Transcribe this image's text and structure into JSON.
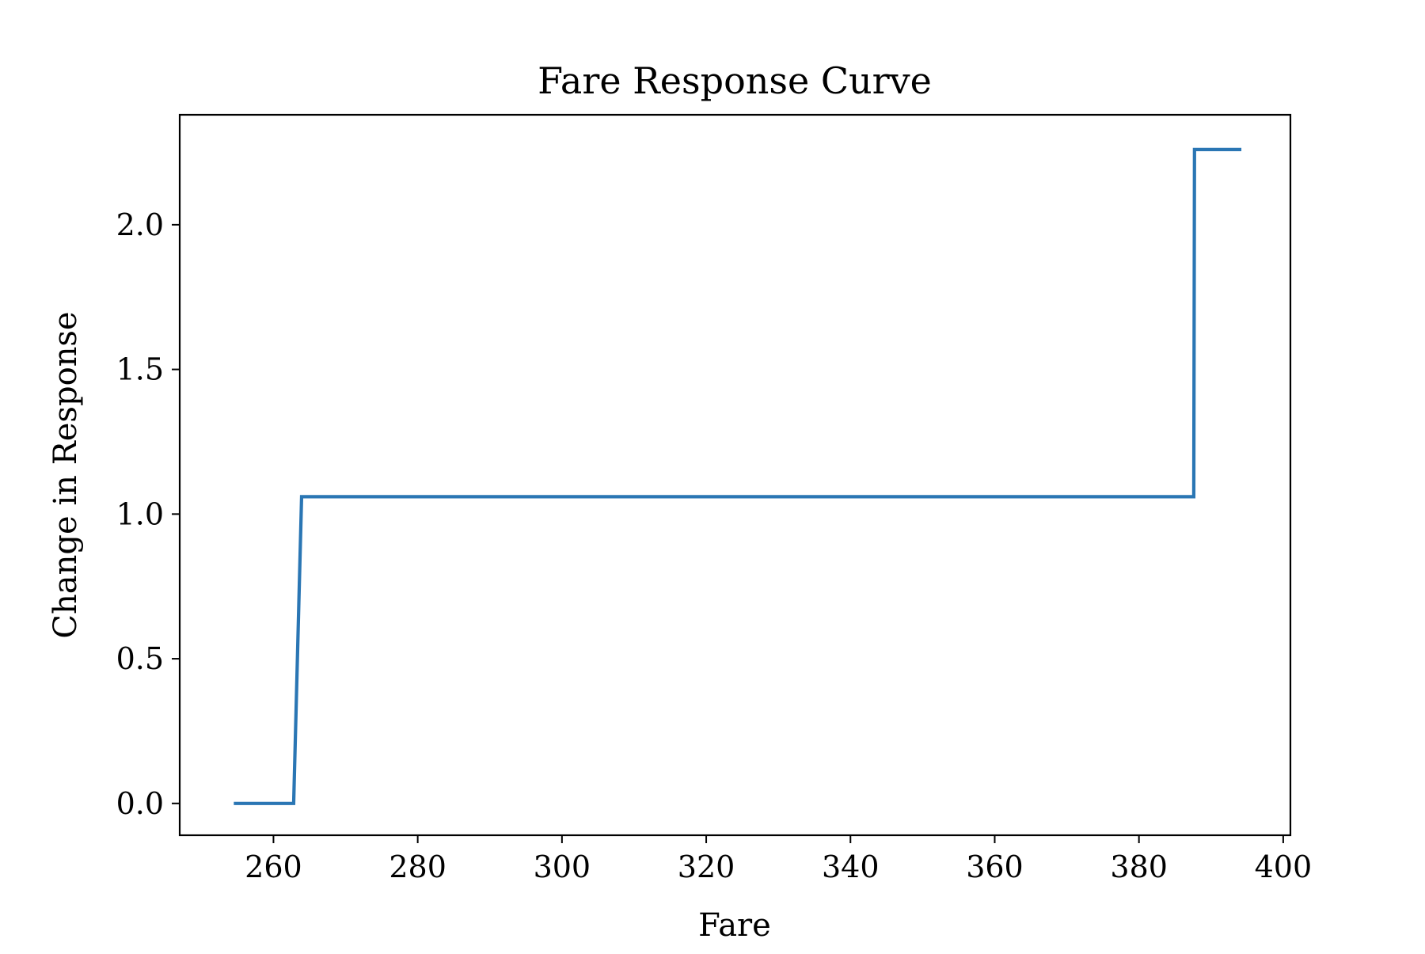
{
  "chart_data": {
    "type": "line",
    "title": "Fare Response Curve",
    "xlabel": "Fare",
    "ylabel": "Change in Response",
    "xlim": [
      247.0,
      401.0
    ],
    "ylim": [
      -0.11,
      2.38
    ],
    "xticks": [
      260,
      280,
      300,
      320,
      340,
      360,
      380,
      400
    ],
    "xtick_labels": [
      "260",
      "280",
      "300",
      "320",
      "340",
      "360",
      "380",
      "400"
    ],
    "yticks": [
      0.0,
      0.5,
      1.0,
      1.5,
      2.0
    ],
    "ytick_labels": [
      "0.0",
      "0.5",
      "1.0",
      "1.5",
      "2.0"
    ],
    "grid": false,
    "series": [
      {
        "color": "#2a76b4",
        "x": [
          254.5,
          262.8,
          263.9,
          387.6,
          387.7,
          394.2
        ],
        "y": [
          0.0,
          0.0,
          1.06,
          1.06,
          2.26,
          2.26
        ]
      }
    ]
  }
}
